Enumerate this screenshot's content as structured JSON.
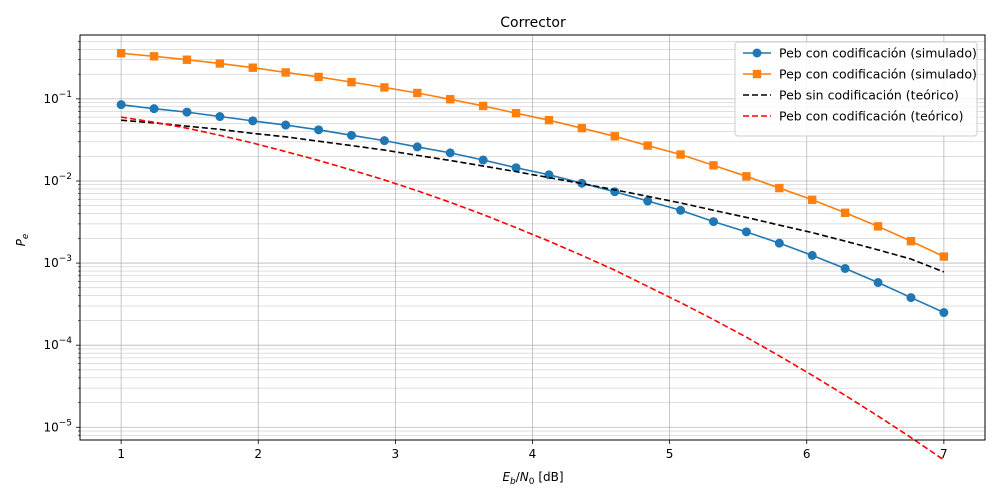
{
  "chart_data": {
    "type": "line",
    "title": "Corrector",
    "xlabel": "E_b/N_0 [dB]",
    "ylabel": "P_e",
    "xlim": [
      0.7,
      7.3
    ],
    "ylim": [
      7e-06,
      0.6
    ],
    "yscale": "log",
    "grid": true,
    "legend_position": "top-right",
    "x_ticks": [
      1,
      2,
      3,
      4,
      5,
      6,
      7
    ],
    "y_ticks": [
      {
        "value": 0.1,
        "base": "10",
        "exp": "−1"
      },
      {
        "value": 0.01,
        "base": "10",
        "exp": "−2"
      },
      {
        "value": 0.001,
        "base": "10",
        "exp": "−3"
      },
      {
        "value": 0.0001,
        "base": "10",
        "exp": "−4"
      },
      {
        "value": 1e-05,
        "base": "10",
        "exp": "−5"
      }
    ],
    "x": [
      1.0,
      1.24,
      1.48,
      1.72,
      1.96,
      2.2,
      2.44,
      2.68,
      2.92,
      3.16,
      3.4,
      3.64,
      3.88,
      4.12,
      4.36,
      4.6,
      4.84,
      5.08,
      5.32,
      5.56,
      5.8,
      6.04,
      6.28,
      6.52,
      6.76,
      7.0
    ],
    "series": [
      {
        "name": "Peb con codificación (simulado)",
        "color": "#1f77b4",
        "line": "solid",
        "marker": "circle",
        "values": [
          0.085,
          0.076,
          0.069,
          0.061,
          0.054,
          0.048,
          0.042,
          0.036,
          0.031,
          0.026,
          0.022,
          0.018,
          0.0145,
          0.0119,
          0.0094,
          0.0074,
          0.0057,
          0.0044,
          0.0032,
          0.0024,
          0.00175,
          0.00124,
          0.00086,
          0.00058,
          0.00038,
          0.00025
        ]
      },
      {
        "name": "Pep con codificación (simulado)",
        "color": "#ff7f0e",
        "line": "solid",
        "marker": "square",
        "values": [
          0.36,
          0.33,
          0.3,
          0.27,
          0.24,
          0.21,
          0.185,
          0.16,
          0.138,
          0.118,
          0.099,
          0.082,
          0.067,
          0.055,
          0.044,
          0.035,
          0.027,
          0.021,
          0.0155,
          0.0114,
          0.0082,
          0.0059,
          0.0041,
          0.0028,
          0.00185,
          0.0012
        ]
      },
      {
        "name": "Peb sin codificación (teórico)",
        "color": "#000000",
        "line": "dashed",
        "marker": "none",
        "values": [
          0.055,
          0.051,
          0.0465,
          0.0425,
          0.038,
          0.0345,
          0.0305,
          0.027,
          0.0238,
          0.0205,
          0.0178,
          0.0152,
          0.013,
          0.011,
          0.0093,
          0.0078,
          0.0065,
          0.0054,
          0.0044,
          0.0036,
          0.0029,
          0.00235,
          0.00185,
          0.00145,
          0.00112,
          0.00078
        ]
      },
      {
        "name": "Peb con codificación (teórico)",
        "color": "#ff0000",
        "line": "dashed",
        "marker": "none",
        "values": [
          0.06,
          0.052,
          0.044,
          0.036,
          0.029,
          0.0228,
          0.0178,
          0.0136,
          0.0103,
          0.0076,
          0.0055,
          0.0039,
          0.0027,
          0.00185,
          0.00124,
          0.00082,
          0.00052,
          0.00033,
          0.000205,
          0.000125,
          7.4e-05,
          4.3e-05,
          2.45e-05,
          1.37e-05,
          7.5e-06,
          4e-06
        ]
      }
    ]
  }
}
